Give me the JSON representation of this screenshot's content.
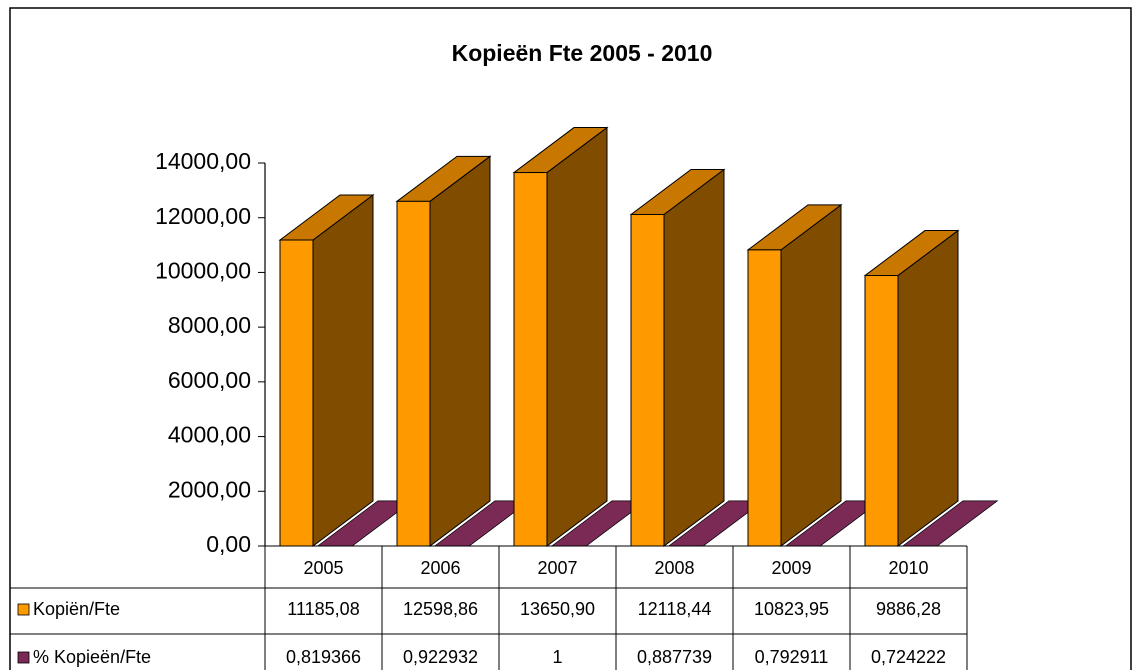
{
  "chart_data": {
    "type": "bar3d",
    "title": "Kopieën Fte 2005 - 2010",
    "categories": [
      "2005",
      "2006",
      "2007",
      "2008",
      "2009",
      "2010"
    ],
    "series": [
      {
        "name": "Kopiën/Fte",
        "color": "#ff9900",
        "values": [
          11185.08,
          12598.86,
          13650.9,
          12118.44,
          10823.95,
          9886.28
        ],
        "value_labels": [
          "11185,08",
          "12598,86",
          "13650,90",
          "12118,44",
          "10823,95",
          "9886,28"
        ]
      },
      {
        "name": "% Kopieën/Fte",
        "color": "#7a2a55",
        "values": [
          0.819366,
          0.922932,
          1,
          0.887739,
          0.792911,
          0.724222
        ],
        "value_labels": [
          "0,819366",
          "0,922932",
          "1",
          "0,887739",
          "0,792911",
          "0,724222"
        ]
      }
    ],
    "ylim": [
      0,
      14000
    ],
    "yticks": [
      {
        "value": 0,
        "label": "0,00"
      },
      {
        "value": 2000,
        "label": "2000,00"
      },
      {
        "value": 4000,
        "label": "4000,00"
      },
      {
        "value": 6000,
        "label": "6000,00"
      },
      {
        "value": 8000,
        "label": "8000,00"
      },
      {
        "value": 10000,
        "label": "10000,00"
      },
      {
        "value": 12000,
        "label": "12000,00"
      },
      {
        "value": 14000,
        "label": "14000,00"
      }
    ],
    "grid": false
  }
}
